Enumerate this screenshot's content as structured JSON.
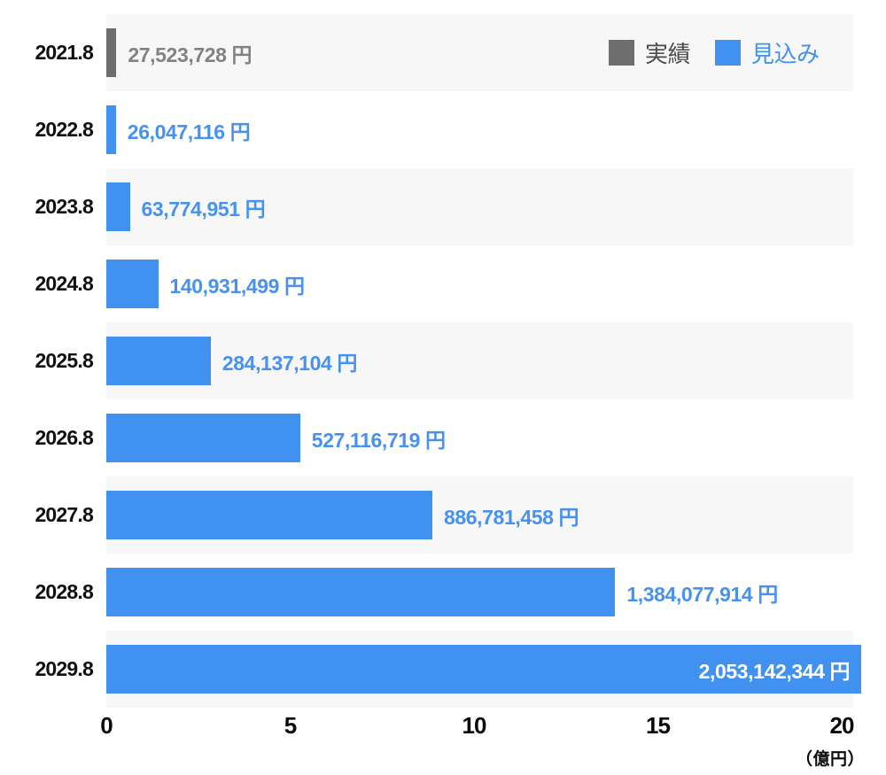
{
  "colors": {
    "actual_bar": "#6e6e6e",
    "forecast_bar": "#4191f0",
    "actual_value_text": "#828282",
    "forecast_value_text": "#4791f0",
    "inside_value_text": "#ffffff",
    "row_band": "#f7f7f7",
    "legend_actual_text": "#4a4a4a",
    "legend_forecast_text": "#4191f0",
    "category_text": "#101010"
  },
  "legend": {
    "actual": {
      "label": "実績"
    },
    "forecast": {
      "label": "見込み"
    }
  },
  "chart_data": {
    "type": "bar",
    "orientation": "horizontal",
    "title": "",
    "categories": [
      "2021.8",
      "2022.8",
      "2023.8",
      "2024.8",
      "2025.8",
      "2026.8",
      "2027.8",
      "2028.8",
      "2029.8"
    ],
    "series_legend": [
      {
        "key": "actual",
        "name": "実績",
        "color": "#6e6e6e"
      },
      {
        "key": "forecast",
        "name": "見込み",
        "color": "#4191f0"
      }
    ],
    "rows": [
      {
        "category": "2021.8",
        "series": "actual",
        "value_yen": 27523728,
        "label": "27,523,728 円"
      },
      {
        "category": "2022.8",
        "series": "forecast",
        "value_yen": 26047116,
        "label": "26,047,116 円"
      },
      {
        "category": "2023.8",
        "series": "forecast",
        "value_yen": 63774951,
        "label": "63,774,951 円"
      },
      {
        "category": "2024.8",
        "series": "forecast",
        "value_yen": 140931499,
        "label": "140,931,499 円"
      },
      {
        "category": "2025.8",
        "series": "forecast",
        "value_yen": 284137104,
        "label": "284,137,104 円"
      },
      {
        "category": "2026.8",
        "series": "forecast",
        "value_yen": 527116719,
        "label": "527,116,719 円"
      },
      {
        "category": "2027.8",
        "series": "forecast",
        "value_yen": 886781458,
        "label": "886,781,458 円"
      },
      {
        "category": "2028.8",
        "series": "forecast",
        "value_yen": 1384077914,
        "label": "1,384,077,914 円"
      },
      {
        "category": "2029.8",
        "series": "forecast",
        "value_yen": 2053142344,
        "label": "2,053,142,344 円"
      }
    ],
    "xaxis": {
      "ticks": [
        "0",
        "5",
        "10",
        "15",
        "20"
      ],
      "tick_values": [
        0,
        5,
        10,
        15,
        20
      ],
      "min": 0,
      "max": 20,
      "unit_label": "（億円）",
      "unit_scale_yen": 100000000,
      "grid": false
    },
    "legend_position": "top-right"
  }
}
